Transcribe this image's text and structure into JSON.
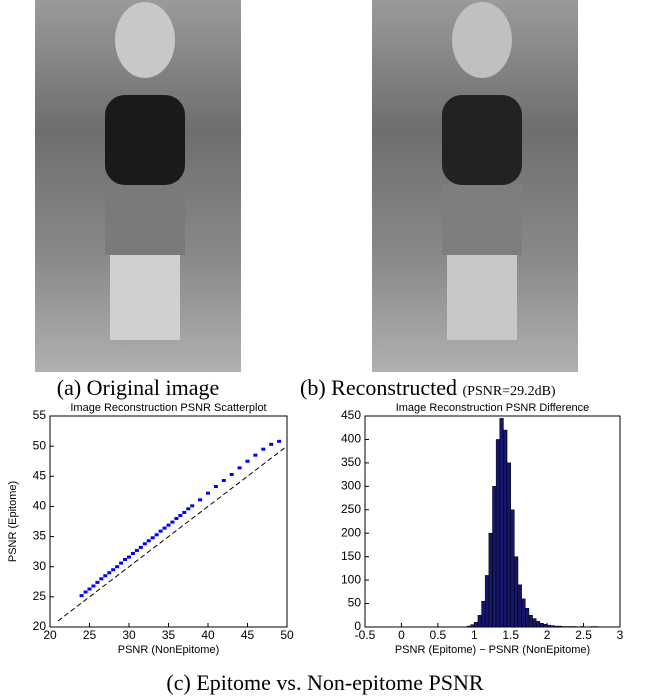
{
  "figure": {
    "panels": [
      {
        "caption": "(a) Original image"
      },
      {
        "caption": "(b) Reconstructed",
        "note": "(PSNR=29.2dB)"
      }
    ],
    "caption": "(c) Epitome vs. Non-epitome PSNR"
  },
  "chart_data": [
    {
      "type": "scatter",
      "title": "Image Reconstruction PSNR Scatterplot",
      "xlabel": "PSNR (NonEpitome)",
      "ylabel": "PSNR (Epitome)",
      "xlim": [
        20,
        50
      ],
      "ylim": [
        20,
        55
      ],
      "xticks": [
        20,
        25,
        30,
        35,
        40,
        45,
        50
      ],
      "yticks": [
        20,
        25,
        30,
        35,
        40,
        45,
        50,
        55
      ],
      "color": "#0000ff",
      "x": [
        24,
        24.5,
        25,
        25.5,
        26,
        26.5,
        27,
        27.5,
        28,
        28.5,
        29,
        29.5,
        30,
        30.5,
        31,
        31.5,
        32,
        32.5,
        33,
        33.5,
        34,
        34.5,
        35,
        35.5,
        36,
        36.5,
        37,
        37.5,
        38,
        39,
        40,
        41,
        42,
        43,
        44,
        45,
        46,
        47,
        48,
        49
      ],
      "y": [
        25.2,
        25.8,
        26.3,
        26.8,
        27.4,
        28.0,
        28.5,
        29.0,
        29.5,
        30.0,
        30.6,
        31.2,
        31.6,
        32.2,
        32.7,
        33.2,
        33.8,
        34.3,
        34.8,
        35.3,
        35.9,
        36.4,
        36.9,
        37.4,
        38.0,
        38.5,
        39.0,
        39.6,
        40.1,
        41.1,
        42.2,
        43.3,
        44.3,
        45.3,
        46.4,
        47.5,
        48.5,
        49.5,
        50.3,
        50.8
      ],
      "reference_line": {
        "x": [
          21,
          50
        ],
        "y": [
          21,
          50
        ],
        "color": "#000000",
        "dashed": true
      }
    },
    {
      "type": "histogram",
      "title": "Image Reconstruction PSNR Difference",
      "xlabel": "PSNR (Epitome) − PSNR (NonEpitome)",
      "xlim": [
        -0.5,
        3
      ],
      "ylim": [
        0,
        450
      ],
      "xticks": [
        -0.5,
        0,
        0.5,
        1,
        1.5,
        2,
        2.5,
        3
      ],
      "yticks": [
        0,
        50,
        100,
        150,
        200,
        250,
        300,
        350,
        400,
        450
      ],
      "color": "#15156b",
      "bins": [
        0.9,
        0.95,
        1.0,
        1.05,
        1.1,
        1.15,
        1.2,
        1.25,
        1.3,
        1.35,
        1.4,
        1.45,
        1.5,
        1.55,
        1.6,
        1.65,
        1.7,
        1.75,
        1.8,
        1.85,
        1.9,
        1.95,
        2.0,
        2.05,
        2.1,
        2.15,
        2.2,
        2.25,
        2.3,
        2.35,
        2.4,
        2.45,
        2.5,
        2.55,
        2.6,
        2.65,
        2.7
      ],
      "values": [
        2,
        5,
        10,
        25,
        55,
        110,
        200,
        300,
        400,
        445,
        420,
        350,
        250,
        150,
        90,
        60,
        40,
        25,
        18,
        12,
        8,
        6,
        4,
        3,
        2,
        2,
        1,
        1,
        1,
        1,
        0,
        1,
        0,
        0,
        1,
        1
      ]
    }
  ]
}
